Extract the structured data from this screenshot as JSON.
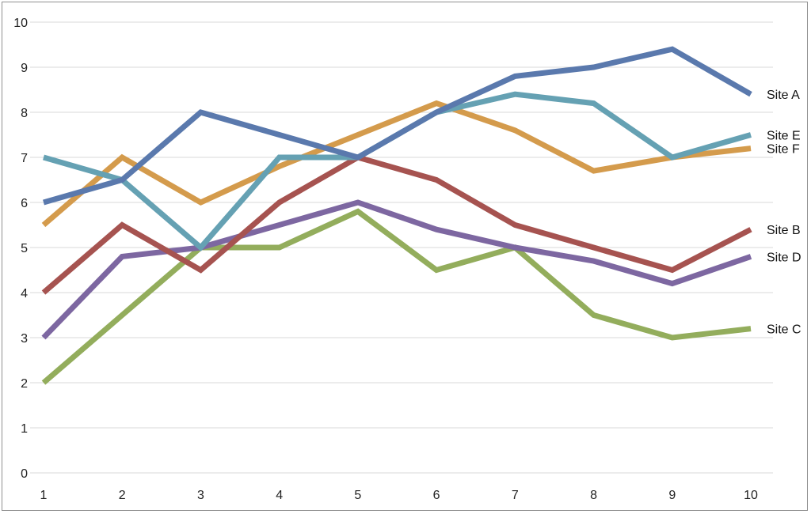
{
  "chart_data": {
    "type": "line",
    "title": "",
    "xlabel": "",
    "ylabel": "",
    "x": [
      1,
      2,
      3,
      4,
      5,
      6,
      7,
      8,
      9,
      10
    ],
    "ylim": [
      0,
      10
    ],
    "yticks": [
      0,
      1,
      2,
      3,
      4,
      5,
      6,
      7,
      8,
      9,
      10
    ],
    "grid": "horizontal",
    "legend": "direct labels at right end of lines",
    "series": [
      {
        "name": "Site A",
        "color": "#5a79ad",
        "values": [
          6,
          6.5,
          8,
          7.5,
          7,
          8,
          8.8,
          9,
          9.4,
          8.4
        ]
      },
      {
        "name": "Site E",
        "color": "#65a1b3",
        "values": [
          7,
          6.5,
          5,
          7,
          7,
          8,
          8.4,
          8.2,
          7,
          7.5
        ]
      },
      {
        "name": "Site F",
        "color": "#d49b4c",
        "values": [
          5.5,
          7,
          6,
          6.8,
          7.5,
          8.2,
          7.6,
          6.7,
          7,
          7.2
        ]
      },
      {
        "name": "Site B",
        "color": "#a65350",
        "values": [
          4,
          5.5,
          4.5,
          6,
          7,
          6.5,
          5.5,
          5,
          4.5,
          5.4
        ]
      },
      {
        "name": "Site D",
        "color": "#7d67a1",
        "values": [
          3,
          4.8,
          5,
          5.5,
          6,
          5.4,
          5,
          4.7,
          4.2,
          4.8
        ]
      },
      {
        "name": "Site C",
        "color": "#93ad5c",
        "values": [
          2,
          3.5,
          5,
          5,
          5.8,
          4.5,
          5,
          3.5,
          3,
          3.2
        ]
      }
    ]
  }
}
